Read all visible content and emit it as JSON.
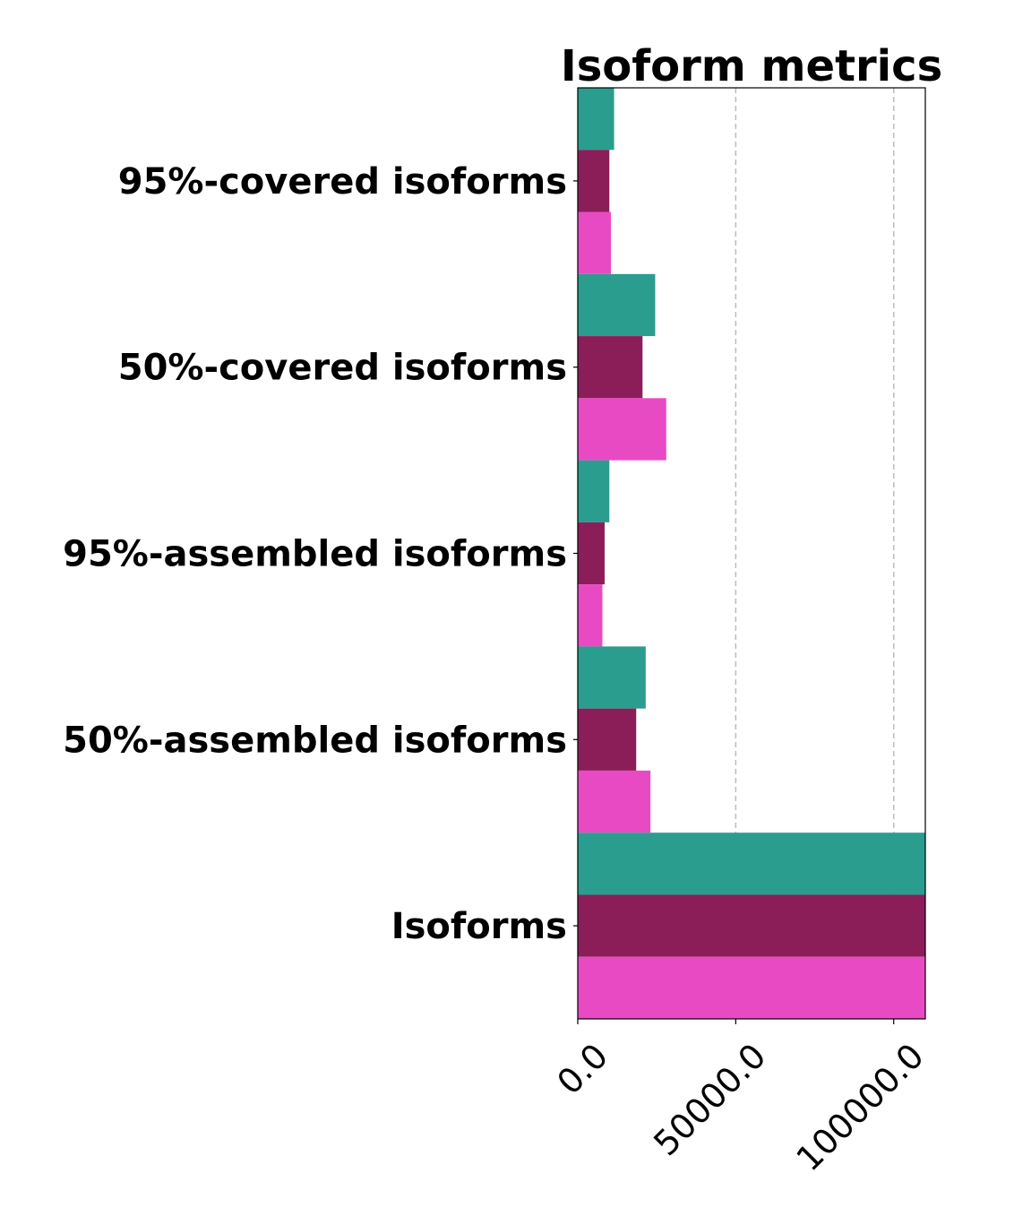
{
  "chart_data": {
    "type": "bar",
    "orientation": "horizontal",
    "title": "Isoform metrics",
    "xlabel": "",
    "ylabel": "",
    "categories": [
      "95%-covered isoforms",
      "50%-covered isoforms",
      "95%-assembled isoforms",
      "50%-assembled isoforms",
      "Isoforms"
    ],
    "series": [
      {
        "color": "#2a9d8f",
        "values": [
          11500,
          24500,
          10000,
          21500,
          110000
        ]
      },
      {
        "color": "#8b1e59",
        "values": [
          10000,
          20500,
          8500,
          18500,
          110000
        ]
      },
      {
        "color": "#e84ac4",
        "values": [
          10500,
          28000,
          7800,
          23000,
          110000
        ]
      }
    ],
    "xlim": [
      0,
      110000
    ],
    "xticks": [
      0,
      50000,
      100000
    ],
    "xtick_labels": [
      "0.0",
      "50000.0",
      "100000.0"
    ],
    "grid": "vertical-dashed",
    "legend": "none"
  }
}
